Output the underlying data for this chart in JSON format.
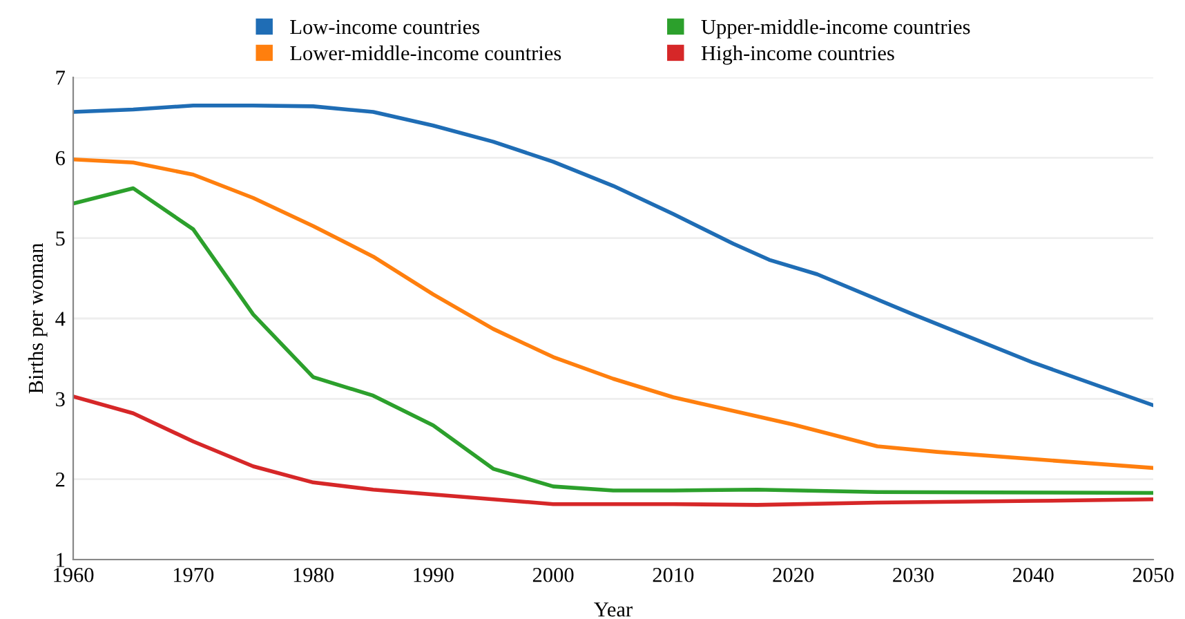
{
  "chart_data": {
    "type": "line",
    "xlabel": "Year",
    "ylabel": "Births per woman",
    "xlim": [
      1960,
      2050
    ],
    "xticks": [
      1960,
      1970,
      1980,
      1990,
      2000,
      2010,
      2020,
      2030,
      2040,
      2050
    ],
    "ylim": [
      1,
      7
    ],
    "yticks": [
      1,
      2,
      3,
      4,
      5,
      6,
      7
    ],
    "grid": "y",
    "legend": "top",
    "marker": "none",
    "line_style": "solid",
    "series": [
      {
        "name": "Low-income countries",
        "color": "#1f6db5",
        "x": [
          1960,
          1965,
          1970,
          1975,
          1980,
          1985,
          1990,
          1995,
          2000,
          2005,
          2010,
          2015,
          2018,
          2022,
          2030,
          2040,
          2050
        ],
        "values": [
          6.57,
          6.6,
          6.65,
          6.65,
          6.64,
          6.57,
          6.4,
          6.2,
          5.95,
          5.65,
          5.3,
          4.93,
          4.73,
          4.55,
          4.05,
          3.45,
          2.92
        ]
      },
      {
        "name": "Lower-middle-income countries",
        "color": "#ff7f0e",
        "x": [
          1960,
          1965,
          1970,
          1975,
          1980,
          1985,
          1990,
          1995,
          2000,
          2005,
          2010,
          2015,
          2020,
          2027,
          2032,
          2040,
          2050
        ],
        "values": [
          5.98,
          5.94,
          5.79,
          5.5,
          5.15,
          4.77,
          4.3,
          3.87,
          3.52,
          3.25,
          3.02,
          2.85,
          2.68,
          2.41,
          2.34,
          2.25,
          2.14
        ]
      },
      {
        "name": "Upper-middle-income countries",
        "color": "#2ca02c",
        "x": [
          1960,
          1965,
          1970,
          1975,
          1980,
          1985,
          1990,
          1995,
          2000,
          2005,
          2010,
          2017,
          2027,
          2050
        ],
        "values": [
          5.43,
          5.62,
          5.11,
          4.05,
          3.27,
          3.04,
          2.67,
          2.13,
          1.91,
          1.86,
          1.86,
          1.87,
          1.84,
          1.83
        ]
      },
      {
        "name": "High-income countries",
        "color": "#d62728",
        "x": [
          1960,
          1965,
          1970,
          1975,
          1980,
          1985,
          1990,
          1995,
          2000,
          2005,
          2010,
          2017,
          2027,
          2040,
          2050
        ],
        "values": [
          3.03,
          2.82,
          2.47,
          2.16,
          1.96,
          1.87,
          1.81,
          1.75,
          1.69,
          1.69,
          1.69,
          1.68,
          1.71,
          1.73,
          1.75
        ]
      }
    ]
  }
}
